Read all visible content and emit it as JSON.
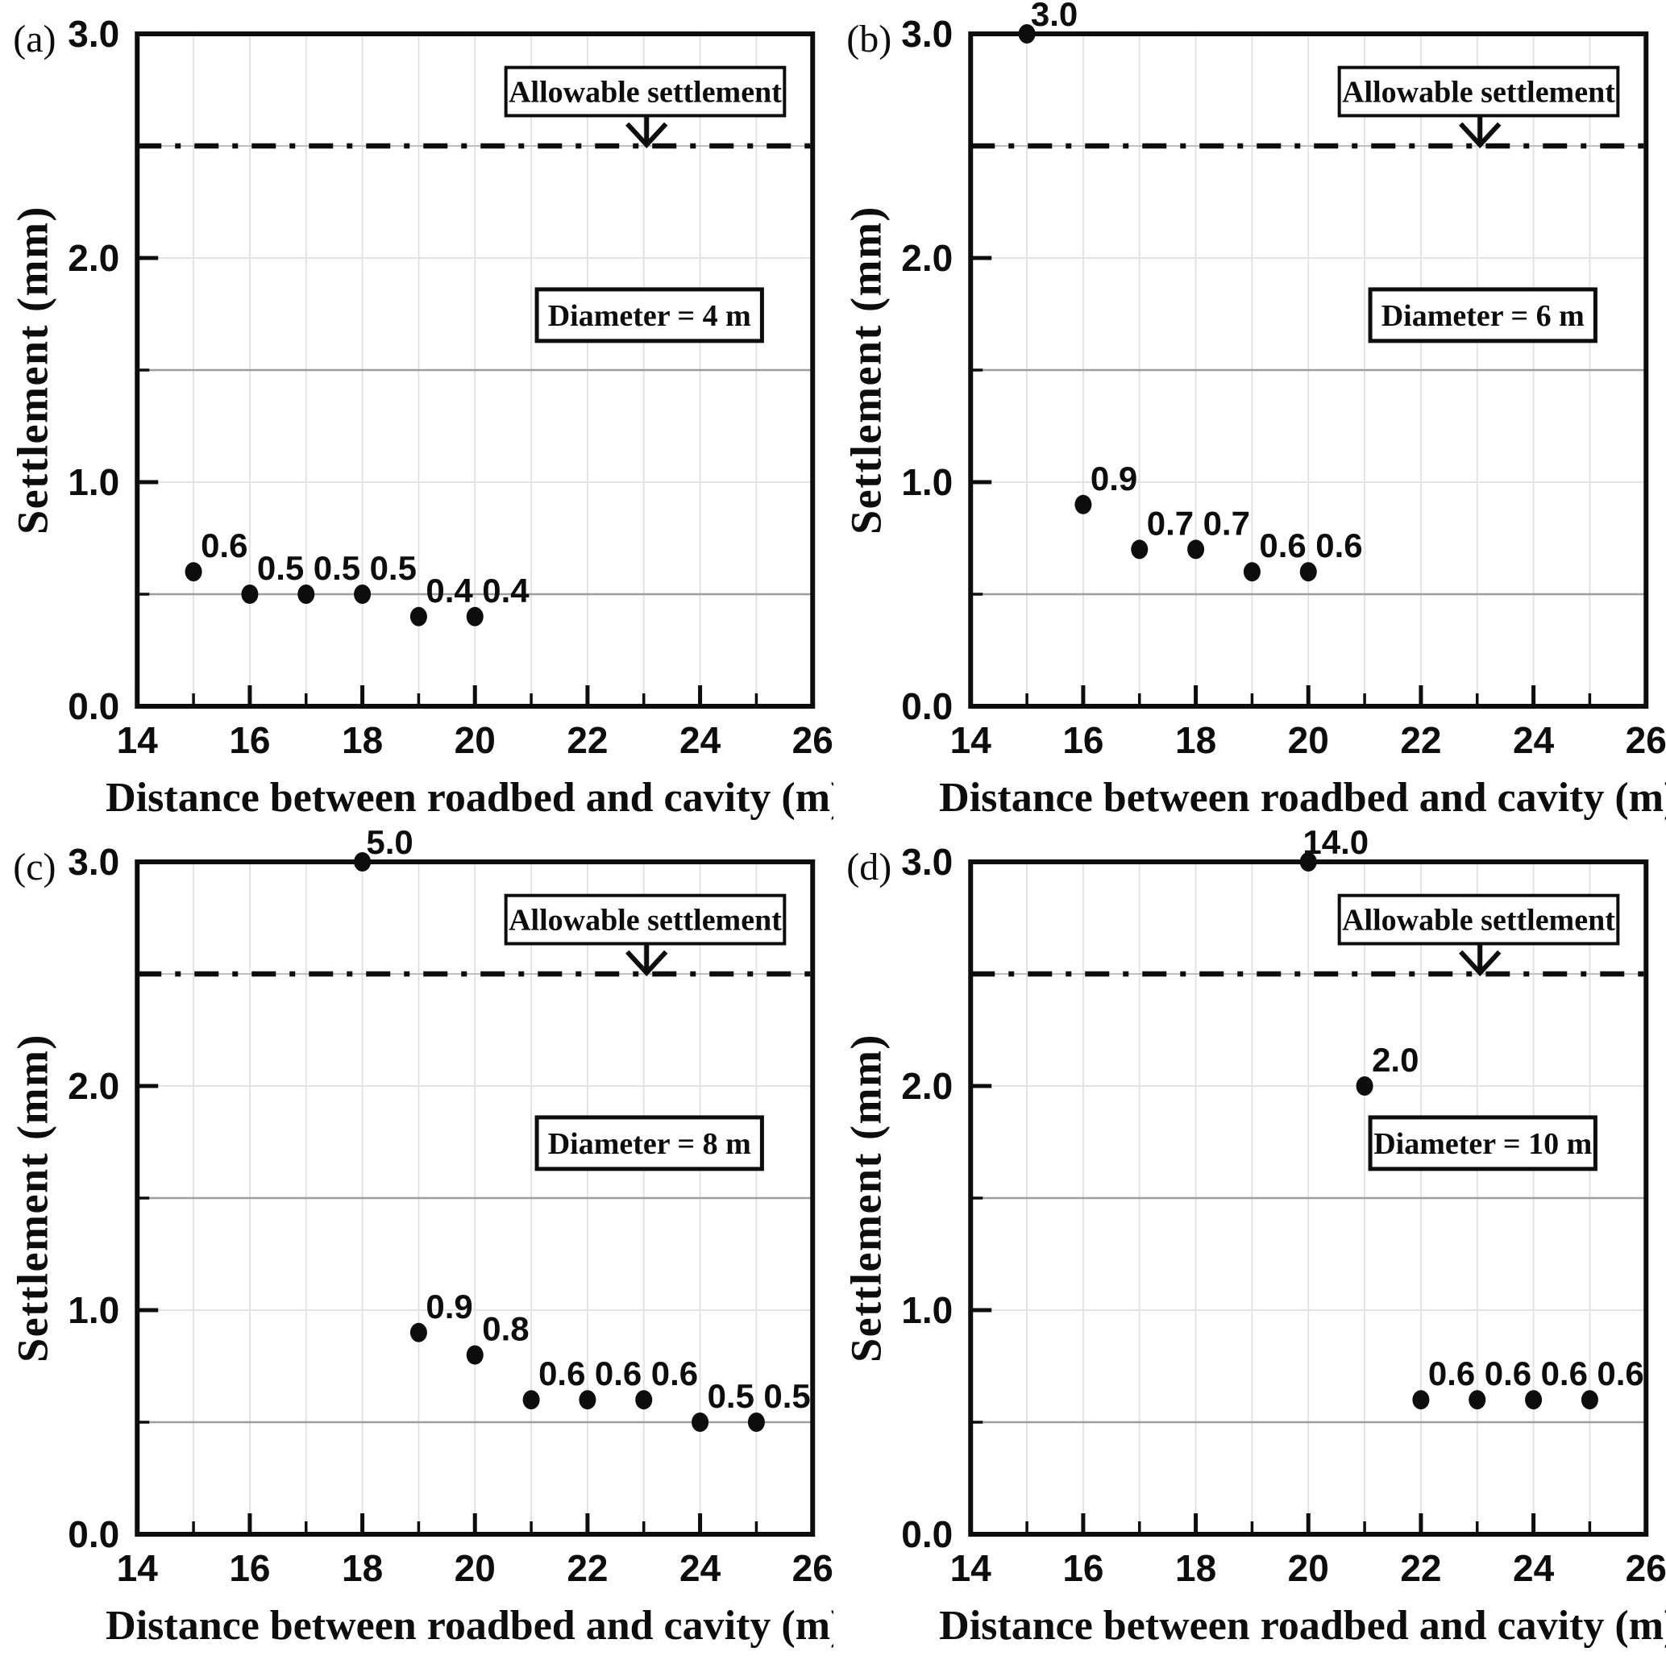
{
  "shared": {
    "xlabel": "Distance between roadbed and cavity (m)",
    "ylabel": "Settlement (mm)",
    "allowable_label": "Allowable settlement",
    "allowable_value": 2.5,
    "xlim": [
      14,
      26
    ],
    "ylim": [
      0,
      3
    ],
    "x_major_ticks": [
      14,
      16,
      18,
      20,
      22,
      24,
      26
    ],
    "x_tick_labels": [
      "14",
      "16",
      "18",
      "20",
      "22",
      "24",
      "26"
    ],
    "x_minor_ticks": [
      15,
      17,
      19,
      21,
      23,
      25
    ],
    "y_major_ticks": [
      0,
      1,
      2,
      3
    ],
    "y_tick_labels": [
      "0.0",
      "1.0",
      "2.0",
      "3.0"
    ],
    "y_minor_ticks": [
      0.5,
      1.5,
      2.5
    ],
    "x_gridlines": [
      15,
      16,
      17,
      18,
      19,
      20,
      21,
      22,
      23,
      24,
      25
    ],
    "grid": true,
    "legend_position": "none",
    "colors": {
      "ink": "#0d0d0d",
      "marker": "#0d0d0d",
      "grid_half": "#9e9e9e",
      "grid_whole": "#e3e3e3",
      "grid_vertical": "#e3e3e3",
      "allowable_underlay": "#c0c0c0",
      "background": "#ffffff"
    }
  },
  "chart_data": [
    {
      "type": "scatter",
      "panel_letter": "(a)",
      "diameter_label": "Diameter = 4 m",
      "xlabel": "Distance between roadbed and cavity (m)",
      "ylabel": "Settlement (mm)",
      "xlim": [
        14,
        26
      ],
      "ylim": [
        0,
        3
      ],
      "allowable_settlement": 2.5,
      "points": [
        {
          "x": 15,
          "y": 0.6,
          "label": "0.6"
        },
        {
          "x": 16,
          "y": 0.5,
          "label": "0.5"
        },
        {
          "x": 17,
          "y": 0.5,
          "label": "0.5"
        },
        {
          "x": 18,
          "y": 0.5,
          "label": "0.5"
        },
        {
          "x": 19,
          "y": 0.4,
          "label": "0.4"
        },
        {
          "x": 20,
          "y": 0.4,
          "label": "0.4"
        }
      ]
    },
    {
      "type": "scatter",
      "panel_letter": "(b)",
      "diameter_label": "Diameter = 6 m",
      "xlabel": "Distance between roadbed and cavity (m)",
      "ylabel": "Settlement (mm)",
      "xlim": [
        14,
        26
      ],
      "ylim": [
        0,
        3
      ],
      "allowable_settlement": 2.5,
      "points": [
        {
          "x": 15,
          "y": 3.0,
          "label": "3.0",
          "at_axis_top": true
        },
        {
          "x": 16,
          "y": 0.9,
          "label": "0.9"
        },
        {
          "x": 17,
          "y": 0.7,
          "label": "0.7"
        },
        {
          "x": 18,
          "y": 0.7,
          "label": "0.7"
        },
        {
          "x": 19,
          "y": 0.6,
          "label": "0.6"
        },
        {
          "x": 20,
          "y": 0.6,
          "label": "0.6"
        }
      ]
    },
    {
      "type": "scatter",
      "panel_letter": "(c)",
      "diameter_label": "Diameter = 8 m",
      "xlabel": "Distance between roadbed and cavity (m)",
      "ylabel": "Settlement (mm)",
      "xlim": [
        14,
        26
      ],
      "ylim": [
        0,
        3
      ],
      "allowable_settlement": 2.5,
      "points": [
        {
          "x": 18,
          "y": 5.0,
          "label": "5.0",
          "plotted_y": 3.0,
          "clipped": true
        },
        {
          "x": 19,
          "y": 0.9,
          "label": "0.9"
        },
        {
          "x": 20,
          "y": 0.8,
          "label": "0.8"
        },
        {
          "x": 21,
          "y": 0.6,
          "label": "0.6"
        },
        {
          "x": 22,
          "y": 0.6,
          "label": "0.6"
        },
        {
          "x": 23,
          "y": 0.6,
          "label": "0.6"
        },
        {
          "x": 24,
          "y": 0.5,
          "label": "0.5"
        },
        {
          "x": 25,
          "y": 0.5,
          "label": "0.5"
        }
      ]
    },
    {
      "type": "scatter",
      "panel_letter": "(d)",
      "diameter_label": "Diameter = 10 m",
      "xlabel": "Distance between roadbed and cavity (m)",
      "ylabel": "Settlement (mm)",
      "xlim": [
        14,
        26
      ],
      "ylim": [
        0,
        3
      ],
      "allowable_settlement": 2.5,
      "points": [
        {
          "x": 20,
          "y": 14.0,
          "label": "14.0",
          "plotted_y": 3.0,
          "clipped": true
        },
        {
          "x": 21,
          "y": 2.0,
          "label": "2.0"
        },
        {
          "x": 22,
          "y": 0.6,
          "label": "0.6"
        },
        {
          "x": 23,
          "y": 0.6,
          "label": "0.6"
        },
        {
          "x": 24,
          "y": 0.6,
          "label": "0.6"
        },
        {
          "x": 25,
          "y": 0.6,
          "label": "0.6"
        }
      ]
    }
  ]
}
